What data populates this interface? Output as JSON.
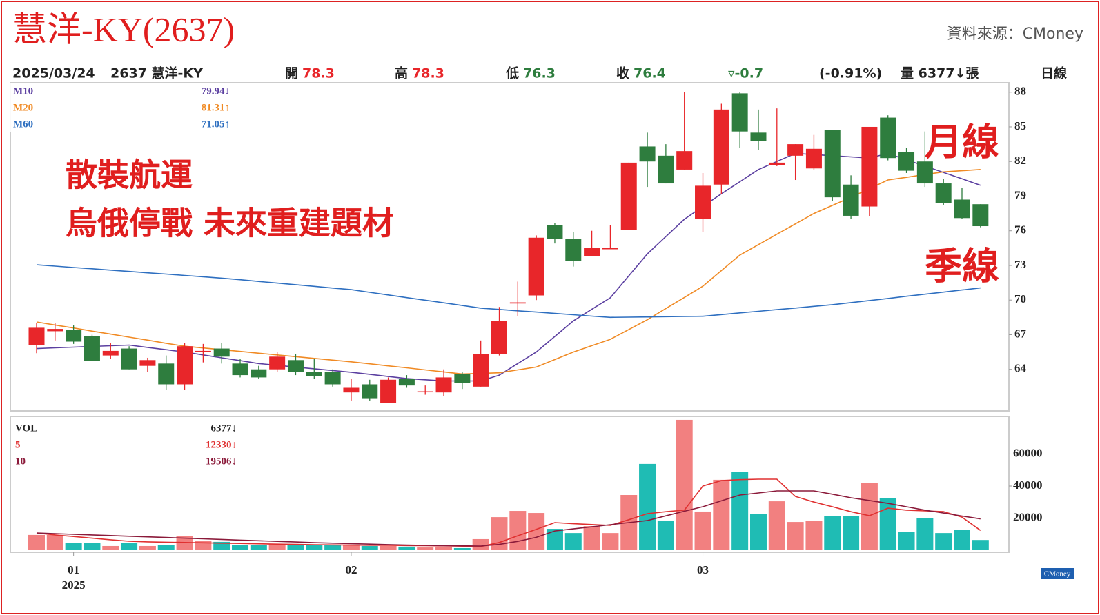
{
  "header": {
    "title": "慧洋-KY(2637)",
    "source": "資料來源：CMoney",
    "date": "2025/03/24",
    "stock": "2637 慧洋-KY",
    "open_label": "開",
    "open": "78.3",
    "high_label": "高",
    "high": "78.3",
    "low_label": "低",
    "low": "76.3",
    "close_label": "收",
    "close": "76.4",
    "change": "▿-0.7",
    "change_pct": "(-0.91%)",
    "volume": "量 6377↓張",
    "period": "日線",
    "logo": "CMoney"
  },
  "chart_data": [
    {
      "type": "candlestick",
      "up_color": "#e8262a",
      "down_color": "#2e7d3e",
      "annotations": [
        "散裝航運",
        "烏俄停戰 未來重建題材",
        "月線",
        "季線"
      ],
      "ylim": [
        60.4,
        88.7
      ],
      "yticks": [
        64,
        67,
        70,
        73,
        76,
        79,
        82,
        85,
        88
      ],
      "open": [
        66.1,
        67.3,
        67.4,
        66.9,
        65.2,
        65.8,
        64.3,
        64.5,
        62.7,
        65.5,
        65.8,
        64.5,
        64.0,
        64.0,
        64.8,
        63.8,
        63.8,
        62.0,
        62.7,
        61.1,
        63.2,
        62.1,
        62.0,
        63.6,
        62.5,
        65.3,
        69.7,
        70.4,
        76.5,
        75.3,
        73.8,
        74.4,
        76.1,
        83.3,
        82.5,
        81.3,
        77.0,
        80.0,
        87.9,
        84.5,
        81.7,
        82.5,
        81.4,
        84.7,
        80.0,
        78.1,
        85.8,
        82.8,
        82.0,
        80.1,
        78.7,
        78.3
      ],
      "high": [
        68.0,
        68.0,
        67.8,
        67.0,
        66.3,
        66.0,
        65.0,
        65.2,
        66.3,
        66.2,
        66.3,
        64.9,
        64.3,
        65.5,
        65.3,
        64.9,
        64.0,
        63.2,
        63.1,
        63.3,
        63.5,
        62.6,
        64.0,
        63.8,
        66.5,
        69.4,
        71.6,
        75.6,
        76.7,
        75.9,
        76.0,
        76.5,
        81.9,
        84.5,
        83.5,
        88.0,
        81.0,
        87.0,
        88.0,
        86.5,
        86.6,
        83.5,
        84.3,
        84.7,
        80.8,
        85.0,
        86.0,
        83.2,
        84.6,
        80.5,
        79.7,
        78.3
      ],
      "low": [
        65.4,
        66.5,
        66.2,
        64.7,
        64.9,
        64.0,
        63.8,
        62.2,
        62.2,
        64.6,
        64.5,
        63.3,
        63.2,
        63.8,
        63.5,
        63.2,
        62.5,
        61.3,
        61.3,
        61.1,
        62.4,
        61.8,
        61.7,
        62.3,
        62.5,
        65.2,
        68.6,
        70.0,
        74.9,
        72.9,
        73.8,
        74.4,
        76.1,
        79.8,
        80.1,
        81.3,
        75.9,
        79.2,
        83.2,
        83.0,
        81.6,
        80.4,
        81.3,
        78.6,
        77.0,
        77.3,
        82.1,
        81.0,
        79.8,
        78.2,
        77.0,
        76.3
      ],
      "close": [
        67.6,
        67.5,
        66.4,
        64.7,
        65.6,
        64.0,
        64.8,
        62.7,
        66.0,
        65.6,
        65.1,
        63.5,
        63.3,
        65.1,
        63.8,
        63.4,
        62.7,
        62.4,
        61.5,
        63.1,
        62.6,
        62.1,
        63.3,
        62.8,
        65.3,
        68.2,
        69.8,
        75.4,
        75.3,
        73.4,
        74.5,
        74.5,
        81.9,
        82.0,
        80.1,
        82.9,
        79.9,
        86.5,
        84.6,
        83.8,
        81.9,
        83.5,
        83.1,
        78.9,
        77.3,
        85.0,
        82.3,
        81.2,
        80.1,
        78.4,
        77.1,
        76.4
      ],
      "series": [
        {
          "name": "M10",
          "color": "#5b3fa0",
          "legend_value": "79.94↓",
          "values": [
            65.8,
            65.86,
            65.92,
            65.98,
            66.04,
            66.1,
            65.9,
            65.7,
            65.5,
            65.25,
            65.0,
            64.75,
            64.5,
            64.35,
            64.2,
            64.05,
            63.9,
            63.75,
            63.57,
            63.38,
            63.2,
            63.1,
            63.0,
            63.0,
            63.0,
            63.5,
            64.5,
            65.5,
            66.85,
            68.2,
            69.2,
            70.2,
            72.1,
            74.0,
            75.5,
            77.0,
            78.1,
            79.2,
            80.25,
            81.3,
            82.0,
            82.7,
            82.6,
            82.5,
            82.4,
            82.3,
            82.7,
            82.15,
            81.6,
            81.05,
            80.5,
            79.94
          ]
        },
        {
          "name": "M20",
          "color": "#f08a24",
          "legend_value": "81.31↑",
          "values": [
            68.1,
            67.84,
            67.58,
            67.31,
            67.05,
            66.79,
            66.53,
            66.26,
            66.0,
            65.85,
            65.7,
            65.55,
            65.4,
            65.25,
            65.1,
            64.95,
            64.8,
            64.65,
            64.48,
            64.3,
            64.13,
            63.95,
            63.78,
            63.6,
            63.65,
            63.7,
            63.95,
            64.2,
            64.85,
            65.5,
            66.05,
            66.6,
            67.45,
            68.3,
            69.27,
            70.23,
            71.2,
            72.55,
            73.9,
            74.8,
            75.7,
            76.6,
            77.5,
            78.2,
            78.9,
            79.65,
            80.4,
            80.63,
            80.87,
            81.1,
            81.2,
            81.31
          ]
        },
        {
          "name": "M60",
          "color": "#2e6fc0",
          "legend_value": "71.05↑",
          "values": [
            73.05,
            72.94,
            72.82,
            72.71,
            72.59,
            72.48,
            72.36,
            72.25,
            72.13,
            72.02,
            71.9,
            71.76,
            71.61,
            71.47,
            71.33,
            71.19,
            71.04,
            70.9,
            70.67,
            70.44,
            70.21,
            69.99,
            69.76,
            69.53,
            69.3,
            69.19,
            69.07,
            68.96,
            68.84,
            68.73,
            68.61,
            68.5,
            68.52,
            68.54,
            68.56,
            68.58,
            68.6,
            68.74,
            68.89,
            69.03,
            69.17,
            69.31,
            69.46,
            69.6,
            69.78,
            69.96,
            70.14,
            70.33,
            70.51,
            70.69,
            70.87,
            71.05
          ]
        }
      ]
    },
    {
      "type": "bar",
      "name": "VOL",
      "legend_value": "6377↓",
      "up_color": "#f28080",
      "down_color": "#1fbcb4",
      "ylim": [
        0,
        83000
      ],
      "yticks": [
        20000,
        40000,
        60000
      ],
      "year": "2025",
      "categories": [
        null,
        null,
        "01",
        null,
        null,
        null,
        null,
        null,
        null,
        null,
        null,
        null,
        null,
        null,
        null,
        null,
        null,
        "02",
        null,
        null,
        null,
        null,
        null,
        null,
        null,
        null,
        null,
        null,
        null,
        null,
        null,
        null,
        null,
        null,
        null,
        null,
        "03",
        null,
        null,
        null,
        null,
        null,
        null,
        null,
        null,
        null,
        null,
        null,
        null,
        null,
        null,
        null
      ],
      "values": [
        9500,
        9500,
        4700,
        4700,
        2600,
        4700,
        2600,
        3400,
        8600,
        6000,
        5200,
        3400,
        3400,
        3900,
        3400,
        3400,
        3400,
        3400,
        2600,
        2600,
        2200,
        1700,
        2200,
        1300,
        6900,
        20600,
        24500,
        23200,
        13300,
        10700,
        15000,
        10700,
        34400,
        53800,
        18500,
        81300,
        24100,
        43900,
        49000,
        22400,
        30500,
        17600,
        18100,
        21100,
        21100,
        42100,
        32300,
        11600,
        20200,
        10700,
        12500,
        6377
      ],
      "series": [
        {
          "name": "5",
          "color": "#e03030",
          "legend_value": "12330↓",
          "values": [
            10700,
            9500,
            8500,
            7500,
            6500,
            5600,
            5200,
            5000,
            4800,
            4600,
            4400,
            4200,
            4000,
            3800,
            3600,
            3400,
            3300,
            3200,
            3100,
            3000,
            2900,
            2800,
            2700,
            2500,
            2300,
            4800,
            9000,
            13000,
            17200,
            16500,
            16000,
            15500,
            19000,
            22800,
            24000,
            25000,
            40000,
            43400,
            44000,
            44300,
            44300,
            33500,
            30000,
            27100,
            24000,
            21500,
            26200,
            25000,
            24500,
            24100,
            20600,
            12330
          ]
        },
        {
          "name": "10",
          "color": "#8b1a3a",
          "legend_value": "19506↓",
          "values": [
            10700,
            10300,
            9900,
            9500,
            9100,
            8700,
            8300,
            7900,
            7500,
            7100,
            6700,
            6300,
            5900,
            5500,
            5100,
            4700,
            4400,
            4100,
            3800,
            3500,
            3200,
            3000,
            2800,
            2700,
            2600,
            3600,
            5500,
            8000,
            12000,
            13300,
            14600,
            15900,
            17200,
            18500,
            21400,
            24300,
            27100,
            30800,
            34400,
            35700,
            37000,
            37000,
            37000,
            34900,
            32700,
            31000,
            29200,
            27100,
            25000,
            23200,
            21300,
            19506
          ]
        }
      ]
    }
  ]
}
